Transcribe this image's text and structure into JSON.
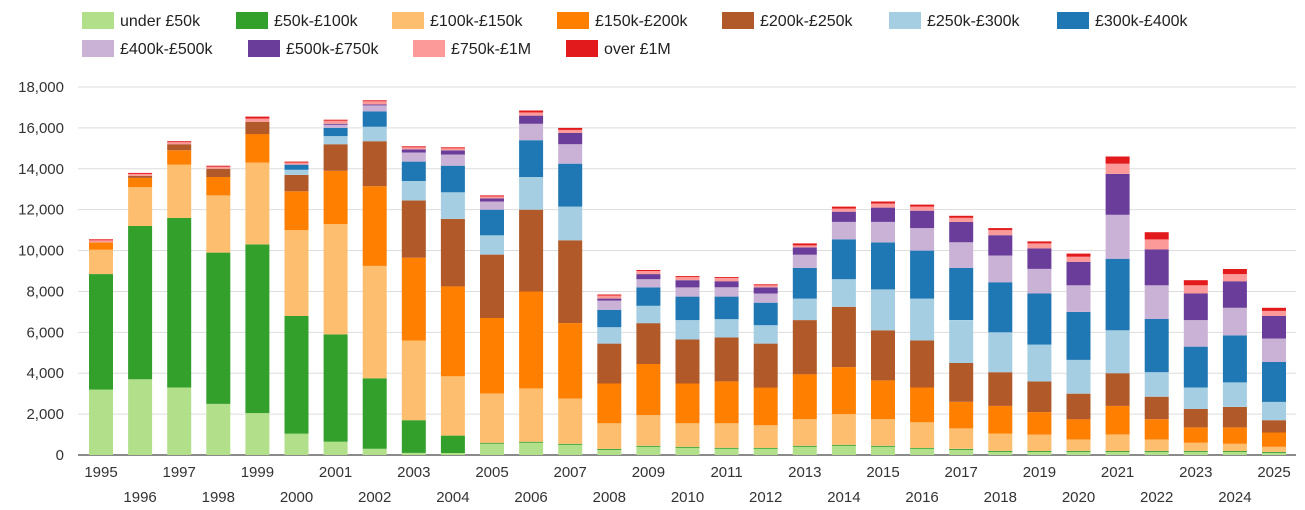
{
  "chart_data": {
    "type": "bar",
    "stacked": true,
    "title": "",
    "xlabel": "",
    "ylabel": "",
    "ylim": [
      0,
      18000
    ],
    "yticks": [
      0,
      2000,
      4000,
      6000,
      8000,
      10000,
      12000,
      14000,
      16000,
      18000
    ],
    "ytick_labels": [
      "0",
      "2,000",
      "4,000",
      "6,000",
      "8,000",
      "10,000",
      "12,000",
      "14,000",
      "16,000",
      "18,000"
    ],
    "grid": true,
    "legend_position": "top",
    "categories": [
      "1995",
      "1996",
      "1997",
      "1998",
      "1999",
      "2000",
      "2001",
      "2002",
      "2003",
      "2004",
      "2005",
      "2006",
      "2007",
      "2008",
      "2009",
      "2010",
      "2011",
      "2012",
      "2013",
      "2014",
      "2015",
      "2016",
      "2017",
      "2018",
      "2019",
      "2020",
      "2021",
      "2022",
      "2023",
      "2024",
      "2025"
    ],
    "series": [
      {
        "name": "under £50k",
        "color": "#b2df8a",
        "values": [
          3200,
          3700,
          3300,
          2500,
          2050,
          1050,
          650,
          300,
          100,
          100,
          550,
          600,
          500,
          250,
          400,
          350,
          300,
          300,
          400,
          450,
          400,
          300,
          250,
          150,
          150,
          150,
          150,
          150,
          150,
          150,
          100
        ]
      },
      {
        "name": "£50k-£100k",
        "color": "#33a02c",
        "values": [
          5650,
          7500,
          8300,
          7400,
          8250,
          5750,
          5250,
          3450,
          1600,
          850,
          50,
          50,
          50,
          50,
          50,
          50,
          50,
          50,
          50,
          50,
          50,
          50,
          50,
          50,
          50,
          50,
          50,
          50,
          50,
          50,
          50
        ]
      },
      {
        "name": "£100k-£150k",
        "color": "#fdbf6f",
        "values": [
          1200,
          1900,
          2600,
          2800,
          4000,
          4200,
          5400,
          5500,
          3900,
          2900,
          2400,
          2600,
          2200,
          1250,
          1500,
          1150,
          1200,
          1100,
          1300,
          1500,
          1300,
          1250,
          1000,
          850,
          800,
          550,
          800,
          550,
          400,
          350,
          250
        ]
      },
      {
        "name": "£150k-£200k",
        "color": "#ff7f00",
        "values": [
          350,
          450,
          700,
          900,
          1400,
          1900,
          2600,
          3900,
          4050,
          4400,
          3700,
          4750,
          3700,
          1950,
          2500,
          1950,
          2050,
          1850,
          2200,
          2300,
          1900,
          1700,
          1300,
          1350,
          1100,
          1000,
          1400,
          1000,
          750,
          800,
          700
        ]
      },
      {
        "name": "£200k-£250k",
        "color": "#b15928",
        "values": [
          0,
          100,
          300,
          400,
          600,
          800,
          1300,
          2200,
          2800,
          3300,
          3100,
          4000,
          4050,
          1950,
          2000,
          2150,
          2150,
          2150,
          2650,
          2950,
          2450,
          2300,
          1900,
          1650,
          1500,
          1250,
          1600,
          1100,
          900,
          1000,
          600
        ]
      },
      {
        "name": "£250k-£300k",
        "color": "#a6cee3",
        "values": [
          0,
          0,
          0,
          0,
          0,
          250,
          400,
          700,
          950,
          1300,
          950,
          1600,
          1650,
          800,
          850,
          950,
          900,
          900,
          1050,
          1350,
          2000,
          2050,
          2100,
          1950,
          1800,
          1650,
          2100,
          1200,
          1050,
          1200,
          900
        ]
      },
      {
        "name": "£300k-£400k",
        "color": "#1f78b4",
        "values": [
          0,
          0,
          0,
          0,
          0,
          250,
          400,
          750,
          950,
          1300,
          1250,
          1800,
          2100,
          850,
          900,
          1150,
          1100,
          1100,
          1500,
          1950,
          2300,
          2350,
          2550,
          2450,
          2500,
          2350,
          3500,
          2600,
          2000,
          2300,
          1950
        ]
      },
      {
        "name": "£400k-£500k",
        "color": "#cab2d6",
        "values": [
          0,
          0,
          0,
          0,
          0,
          0,
          150,
          300,
          450,
          550,
          400,
          800,
          950,
          450,
          400,
          450,
          450,
          450,
          650,
          850,
          1000,
          1100,
          1250,
          1300,
          1200,
          1300,
          2150,
          1650,
          1300,
          1350,
          1150
        ]
      },
      {
        "name": "£500k-£750k",
        "color": "#6a3d9a",
        "values": [
          0,
          0,
          0,
          0,
          0,
          0,
          50,
          50,
          150,
          200,
          150,
          400,
          550,
          100,
          250,
          350,
          300,
          300,
          350,
          500,
          700,
          850,
          1000,
          1000,
          1000,
          1150,
          2000,
          1750,
          1300,
          1300,
          1100
        ]
      },
      {
        "name": "£750k-£1M",
        "color": "#fb9a99",
        "values": [
          0,
          0,
          0,
          0,
          0,
          0,
          0,
          0,
          0,
          0,
          0,
          0,
          0,
          0,
          0,
          0,
          0,
          0,
          0,
          0,
          0,
          0,
          0,
          0,
          0,
          0,
          0,
          0,
          0,
          0,
          0
        ]
      },
      {
        "name": "over £1M",
        "color": "#e31a1c",
        "values": [
          0,
          0,
          0,
          0,
          0,
          0,
          0,
          0,
          0,
          0,
          0,
          0,
          0,
          0,
          0,
          0,
          0,
          0,
          0,
          0,
          0,
          0,
          0,
          0,
          0,
          0,
          0,
          0,
          0,
          0,
          0
        ]
      }
    ],
    "top_series_values": {
      "£750k-£1M": [
        0,
        0,
        0,
        0,
        0,
        0,
        0,
        0,
        0,
        0,
        0,
        0,
        0,
        0,
        0,
        0,
        0,
        0,
        0,
        0,
        0,
        0,
        0,
        0,
        0,
        0,
        0,
        0,
        0,
        0,
        0
      ],
      "over £1M": [
        0,
        0,
        0,
        0,
        0,
        0,
        0,
        0,
        0,
        0,
        0,
        0,
        0,
        0,
        0,
        0,
        0,
        0,
        0,
        0,
        0,
        0,
        0,
        0,
        0,
        0,
        0,
        0,
        0,
        0,
        0
      ]
    },
    "extra_top": {
      "£750k-£1M": [
        100,
        100,
        100,
        100,
        150,
        100,
        150,
        150,
        100,
        100,
        100,
        150,
        150,
        150,
        150,
        150,
        150,
        100,
        100,
        150,
        200,
        200,
        200,
        250,
        250,
        250,
        500,
        500,
        400,
        350,
        250
      ],
      "over £1M": [
        50,
        50,
        50,
        50,
        100,
        50,
        50,
        50,
        50,
        50,
        50,
        100,
        100,
        50,
        50,
        50,
        50,
        50,
        100,
        100,
        100,
        100,
        100,
        100,
        100,
        150,
        350,
        350,
        250,
        250,
        150
      ]
    }
  }
}
